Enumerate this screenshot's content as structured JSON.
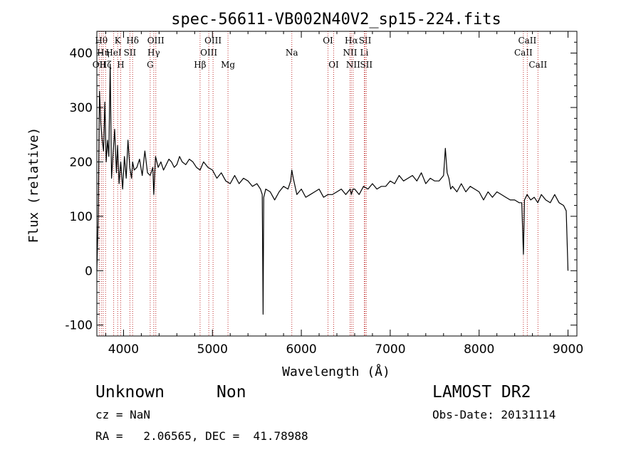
{
  "chart_data": {
    "type": "line",
    "title": "spec-56611-VB002N40V2_sp15-224.fits",
    "xlabel": "Wavelength (Å)",
    "ylabel": "Flux (relative)",
    "xlim": [
      3700,
      9100
    ],
    "ylim": [
      -120,
      440
    ],
    "xticks": [
      4000,
      5000,
      6000,
      7000,
      8000,
      9000
    ],
    "yticks": [
      -100,
      0,
      100,
      200,
      300,
      400
    ],
    "grid": false,
    "series": [
      {
        "x": [
          3700,
          3715,
          3730,
          3745,
          3760,
          3775,
          3790,
          3805,
          3820,
          3835,
          3850,
          3865,
          3880,
          3900,
          3920,
          3933,
          3950,
          3968,
          3990,
          4010,
          4030,
          4050,
          4070,
          4090,
          4102,
          4120,
          4150,
          4180,
          4210,
          4240,
          4270,
          4300,
          4330,
          4340,
          4360,
          4390,
          4420,
          4450,
          4480,
          4510,
          4540,
          4570,
          4600,
          4630,
          4660,
          4700,
          4740,
          4780,
          4820,
          4861,
          4900,
          4950,
          5000,
          5050,
          5100,
          5150,
          5200,
          5250,
          5300,
          5350,
          5400,
          5450,
          5500,
          5540,
          5560,
          5570,
          5577,
          5585,
          5600,
          5650,
          5700,
          5750,
          5800,
          5850,
          5880,
          5893,
          5910,
          5950,
          6000,
          6050,
          6100,
          6150,
          6200,
          6250,
          6300,
          6350,
          6400,
          6450,
          6500,
          6550,
          6563,
          6580,
          6600,
          6650,
          6700,
          6750,
          6800,
          6850,
          6900,
          6950,
          7000,
          7050,
          7100,
          7150,
          7200,
          7250,
          7300,
          7350,
          7400,
          7450,
          7500,
          7550,
          7600,
          7620,
          7640,
          7660,
          7680,
          7700,
          7750,
          7800,
          7850,
          7900,
          7950,
          8000,
          8050,
          8100,
          8150,
          8200,
          8250,
          8300,
          8350,
          8400,
          8450,
          8480,
          8498,
          8510,
          8540,
          8580,
          8620,
          8660,
          8700,
          8750,
          8800,
          8850,
          8900,
          8950,
          8980,
          9000
        ],
        "y": [
          0,
          100,
          330,
          270,
          240,
          220,
          310,
          200,
          240,
          210,
          380,
          170,
          210,
          260,
          180,
          230,
          160,
          200,
          150,
          210,
          170,
          240,
          190,
          170,
          200,
          185,
          190,
          205,
          175,
          220,
          180,
          175,
          190,
          140,
          210,
          190,
          200,
          185,
          195,
          205,
          200,
          190,
          195,
          210,
          200,
          195,
          205,
          200,
          190,
          185,
          200,
          190,
          185,
          170,
          180,
          165,
          160,
          175,
          160,
          170,
          165,
          155,
          160,
          150,
          140,
          -80,
          135,
          140,
          150,
          145,
          130,
          145,
          155,
          150,
          165,
          185,
          170,
          140,
          150,
          135,
          140,
          145,
          150,
          135,
          140,
          140,
          145,
          150,
          140,
          150,
          140,
          150,
          150,
          140,
          155,
          150,
          160,
          150,
          155,
          155,
          165,
          160,
          175,
          165,
          170,
          175,
          165,
          180,
          160,
          170,
          165,
          165,
          175,
          225,
          180,
          170,
          150,
          155,
          145,
          160,
          145,
          155,
          150,
          145,
          130,
          145,
          135,
          145,
          140,
          135,
          130,
          130,
          125,
          125,
          30,
          130,
          140,
          130,
          135,
          125,
          140,
          130,
          125,
          140,
          125,
          120,
          110,
          0
        ]
      }
    ],
    "vertical_lines": [
      {
        "x": 3727,
        "labels": [
          "OII"
        ],
        "row": 3
      },
      {
        "x": 3750,
        "labels": [
          "Hθ"
        ],
        "row": 1
      },
      {
        "x": 3771,
        "labels": [
          "Hη"
        ],
        "row": 2
      },
      {
        "x": 3798,
        "labels": [
          "Hζ"
        ],
        "row": 3
      },
      {
        "x": 3889,
        "labels": [
          "HeI"
        ],
        "row": 2
      },
      {
        "x": 3934,
        "labels": [
          "K"
        ],
        "row": 1
      },
      {
        "x": 3968,
        "labels": [
          "H"
        ],
        "row": 3
      },
      {
        "x": 4072,
        "labels": [
          "SII"
        ],
        "row": 2
      },
      {
        "x": 4102,
        "labels": [
          "Hδ"
        ],
        "row": 1
      },
      {
        "x": 4300,
        "labels": [
          "G"
        ],
        "row": 3
      },
      {
        "x": 4340,
        "labels": [
          "Hγ"
        ],
        "row": 2
      },
      {
        "x": 4363,
        "labels": [
          "OIII"
        ],
        "row": 1
      },
      {
        "x": 4861,
        "labels": [
          "Hβ"
        ],
        "row": 3
      },
      {
        "x": 4959,
        "labels": [
          "OIII"
        ],
        "row": 2
      },
      {
        "x": 5007,
        "labels": [
          "OIII"
        ],
        "row": 1
      },
      {
        "x": 5175,
        "labels": [
          "Mg"
        ],
        "row": 3
      },
      {
        "x": 5893,
        "labels": [
          "Na"
        ],
        "row": 2
      },
      {
        "x": 6300,
        "labels": [
          "OI"
        ],
        "row": 1
      },
      {
        "x": 6364,
        "labels": [
          "OI"
        ],
        "row": 3
      },
      {
        "x": 6548,
        "labels": [
          "NII"
        ],
        "row": 2
      },
      {
        "x": 6563,
        "labels": [
          "Hα"
        ],
        "row": 1
      },
      {
        "x": 6583,
        "labels": [
          "NII"
        ],
        "row": 3
      },
      {
        "x": 6708,
        "labels": [
          "Li"
        ],
        "row": 2
      },
      {
        "x": 6717,
        "labels": [
          "SII"
        ],
        "row": 1
      },
      {
        "x": 6731,
        "labels": [
          "SII"
        ],
        "row": 3
      },
      {
        "x": 8498,
        "labels": [
          "CaII"
        ],
        "row": 2
      },
      {
        "x": 8542,
        "labels": [
          "CaII"
        ],
        "row": 1
      },
      {
        "x": 8662,
        "labels": [
          "CaII"
        ],
        "row": 3
      }
    ]
  },
  "info": {
    "class": "Unknown",
    "subclass": "Non",
    "survey": "LAMOST DR2",
    "cz": "cz = NaN",
    "obs_date": "Obs-Date: 20131114",
    "coords": "RA =   2.06565, DEC =  41.78988"
  }
}
